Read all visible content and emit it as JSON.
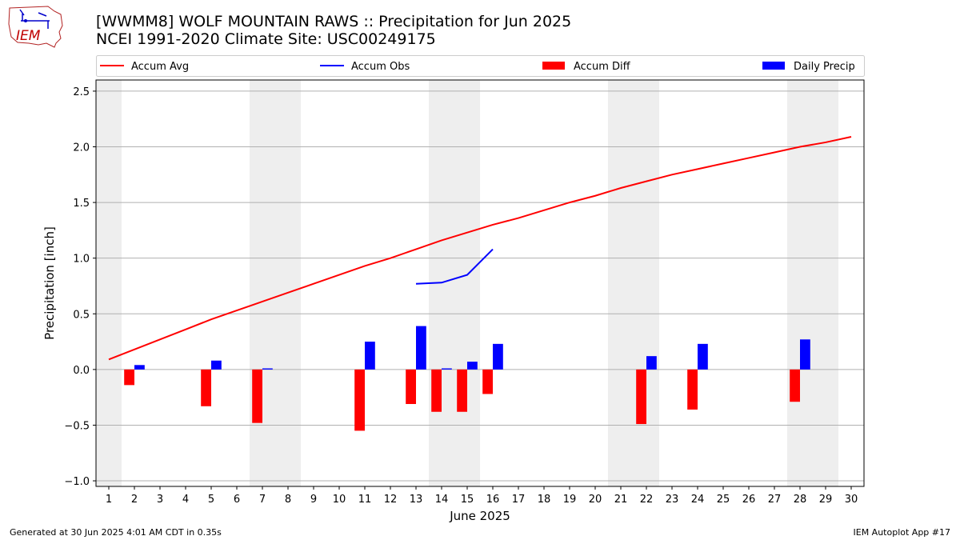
{
  "header": {
    "title_line1": "[WWMM8] WOLF MOUNTAIN RAWS :: Precipitation for Jun 2025",
    "title_line2": "NCEI 1991-2020 Climate Site: USC00249175",
    "logo_text": "IEM"
  },
  "footer": {
    "left": "Generated at 30 Jun 2025 4:01 AM CDT in 0.35s",
    "right": "IEM Autoplot App #17"
  },
  "chart_data": {
    "type": "bar",
    "xlabel": "June 2025",
    "ylabel": "Precipitation [inch]",
    "ylim": [
      -1.05,
      2.6
    ],
    "xlim": [
      0.5,
      30.5
    ],
    "yticks": [
      -1.0,
      -0.5,
      0.0,
      0.5,
      1.0,
      1.5,
      2.0,
      2.5
    ],
    "ytick_labels": [
      "−1.0",
      "−0.5",
      "0.0",
      "0.5",
      "1.0",
      "1.5",
      "2.0",
      "2.5"
    ],
    "days": [
      1,
      2,
      3,
      4,
      5,
      6,
      7,
      8,
      9,
      10,
      11,
      12,
      13,
      14,
      15,
      16,
      17,
      18,
      19,
      20,
      21,
      22,
      23,
      24,
      25,
      26,
      27,
      28,
      29,
      30
    ],
    "weekend_spans": [
      [
        0.5,
        1.5
      ],
      [
        6.5,
        8.5
      ],
      [
        13.5,
        15.5
      ],
      [
        20.5,
        22.5
      ],
      [
        27.5,
        29.5
      ]
    ],
    "grid": "horizontal",
    "legend": {
      "placement": "top",
      "entries": [
        {
          "label": "Accum Avg",
          "kind": "line",
          "color": "#ff0000"
        },
        {
          "label": "Accum Obs",
          "kind": "line",
          "color": "#0000ff"
        },
        {
          "label": "Accum Diff",
          "kind": "bar",
          "color": "#ff0000"
        },
        {
          "label": "Daily Precip",
          "kind": "bar",
          "color": "#0000ff"
        }
      ]
    },
    "series": [
      {
        "name": "Accum Avg",
        "kind": "line",
        "color": "#ff0000",
        "x": [
          1,
          2,
          3,
          4,
          5,
          6,
          7,
          8,
          9,
          10,
          11,
          12,
          13,
          14,
          15,
          16,
          17,
          18,
          19,
          20,
          21,
          22,
          23,
          24,
          25,
          26,
          27,
          28,
          29,
          30
        ],
        "values": [
          0.09,
          0.18,
          0.27,
          0.36,
          0.45,
          0.53,
          0.61,
          0.69,
          0.77,
          0.85,
          0.93,
          1.0,
          1.08,
          1.16,
          1.23,
          1.3,
          1.36,
          1.43,
          1.5,
          1.56,
          1.63,
          1.69,
          1.75,
          1.8,
          1.85,
          1.9,
          1.95,
          2.0,
          2.04,
          2.09
        ]
      },
      {
        "name": "Accum Obs",
        "kind": "line",
        "color": "#0000ff",
        "x": [
          13,
          14,
          15,
          16
        ],
        "values": [
          0.77,
          0.78,
          0.85,
          1.08
        ]
      },
      {
        "name": "Accum Diff",
        "kind": "bar",
        "color": "#ff0000",
        "x": [
          2,
          5,
          7,
          11,
          13,
          14,
          15,
          16,
          22,
          24,
          28
        ],
        "values": [
          -0.14,
          -0.33,
          -0.48,
          -0.55,
          -0.31,
          -0.38,
          -0.38,
          -0.22,
          -0.49,
          -0.36,
          -0.29
        ]
      },
      {
        "name": "Daily Precip",
        "kind": "bar",
        "color": "#0000ff",
        "x": [
          2,
          5,
          7,
          11,
          13,
          14,
          15,
          16,
          22,
          24,
          28
        ],
        "values": [
          0.04,
          0.08,
          0.01,
          0.25,
          0.39,
          0.01,
          0.07,
          0.23,
          0.12,
          0.23,
          0.27
        ]
      }
    ]
  }
}
